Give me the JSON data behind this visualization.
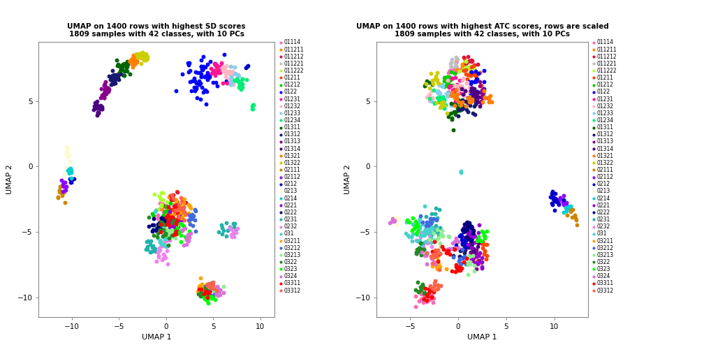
{
  "title1": "UMAP on 1400 rows with highest SD scores\n1809 samples with 42 classes, with 10 PCs",
  "title2": "UMAP on 1400 rows with highest ATC scores, rows are scaled\n1809 samples with 42 classes, with 10 PCs",
  "xlabel": "UMAP 1",
  "ylabel": "UMAP 2",
  "xlim1": [
    -13.5,
    11.5
  ],
  "ylim1": [
    -11.5,
    9.5
  ],
  "xlim2": [
    -8.5,
    13.5
  ],
  "ylim2": [
    -11.5,
    9.5
  ],
  "xticks1": [
    -10,
    -5,
    0,
    5,
    10
  ],
  "yticks1": [
    -10,
    -5,
    0,
    5
  ],
  "xticks2": [
    -5,
    0,
    5,
    10
  ],
  "yticks2": [
    -10,
    -5,
    0,
    5
  ],
  "legend_labels": [
    "01114",
    "011211",
    "011212",
    "011221",
    "011222",
    "01211",
    "01212",
    "0122",
    "01231",
    "01232",
    "01233",
    "01234",
    "01311",
    "01312",
    "01313",
    "01314",
    "01321",
    "01322",
    "02111",
    "02112",
    "0212",
    "0213",
    "0214",
    "0221",
    "0222",
    "0231",
    "0232",
    "031",
    "03211",
    "03212",
    "03213",
    "0322",
    "0323",
    "0324",
    "03311",
    "03312"
  ],
  "legend_colors": [
    "#FF69B4",
    "#FF8C00",
    "#DC143C",
    "#C0C0C0",
    "#ADFF2F",
    "#FF4500",
    "#00CD00",
    "#0000FF",
    "#FF1493",
    "#FFB6C1",
    "#87CEEB",
    "#00EE76",
    "#006400",
    "#191970",
    "#8B008B",
    "#4B0082",
    "#FF7F00",
    "#CDCD00",
    "#CD8500",
    "#8B00FF",
    "#0000CD",
    "#FFFACD",
    "#00CED1",
    "#9400D3",
    "#000080",
    "#20B2AA",
    "#EE82EE",
    "#48D1CC",
    "#FFA500",
    "#4169E1",
    "#90EE90",
    "#228B22",
    "#00FF00",
    "#DA70D6",
    "#FF0000",
    "#FF6347"
  ],
  "background": "#FFFFFF",
  "ax_spine_color": "#AAAAAA",
  "point_size": 18
}
